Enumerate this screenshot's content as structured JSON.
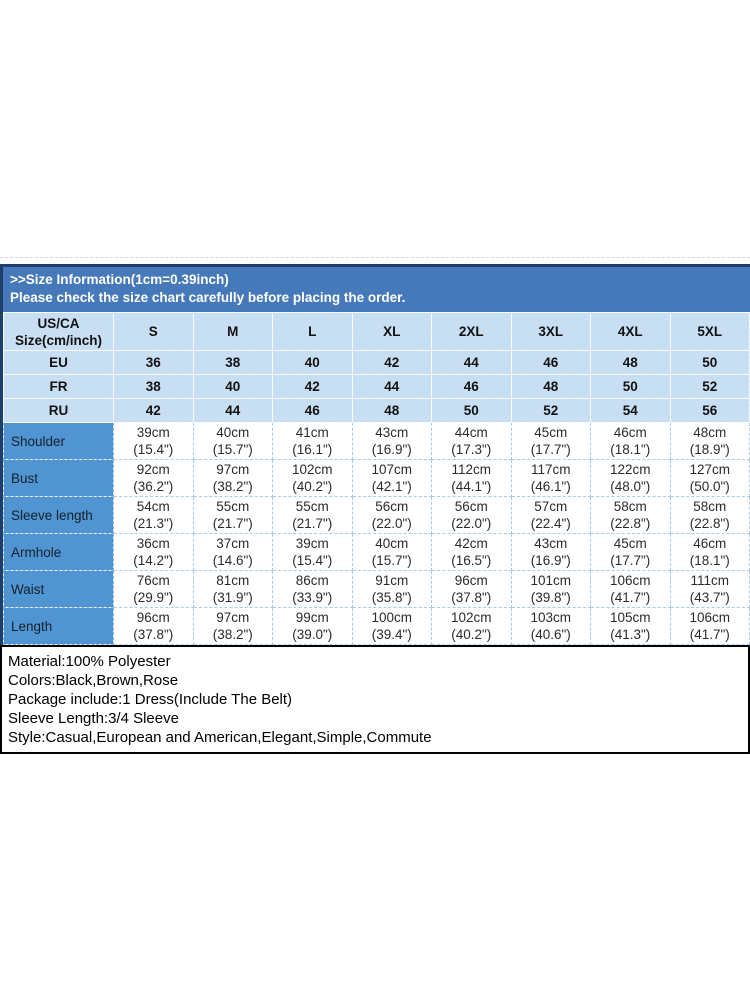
{
  "header": {
    "title_line1": ">>Size Information(1cm=0.39inch)",
    "title_line2": "Please check the size chart carefully before placing the order."
  },
  "size_table": {
    "corner_line1": "US/CA",
    "corner_line2": "Size(cm/inch)",
    "size_headers": [
      "S",
      "M",
      "L",
      "XL",
      "2XL",
      "3XL",
      "4XL",
      "5XL"
    ],
    "region_rows": [
      {
        "label": "EU",
        "values": [
          "36",
          "38",
          "40",
          "42",
          "44",
          "46",
          "48",
          "50"
        ]
      },
      {
        "label": "FR",
        "values": [
          "38",
          "40",
          "42",
          "44",
          "46",
          "48",
          "50",
          "52"
        ]
      },
      {
        "label": "RU",
        "values": [
          "42",
          "44",
          "46",
          "48",
          "50",
          "52",
          "54",
          "56"
        ]
      }
    ],
    "measure_rows": [
      {
        "label": "Shoulder",
        "values": [
          {
            "cm": "39cm",
            "inch": "(15.4\")"
          },
          {
            "cm": "40cm",
            "inch": "(15.7\")"
          },
          {
            "cm": "41cm",
            "inch": "(16.1\")"
          },
          {
            "cm": "43cm",
            "inch": "(16.9\")"
          },
          {
            "cm": "44cm",
            "inch": "(17.3\")"
          },
          {
            "cm": "45cm",
            "inch": "(17.7\")"
          },
          {
            "cm": "46cm",
            "inch": "(18.1\")"
          },
          {
            "cm": "48cm",
            "inch": "(18.9\")"
          }
        ]
      },
      {
        "label": "Bust",
        "values": [
          {
            "cm": "92cm",
            "inch": "(36.2\")"
          },
          {
            "cm": "97cm",
            "inch": "(38.2\")"
          },
          {
            "cm": "102cm",
            "inch": "(40.2\")"
          },
          {
            "cm": "107cm",
            "inch": "(42.1\")"
          },
          {
            "cm": "112cm",
            "inch": "(44.1\")"
          },
          {
            "cm": "117cm",
            "inch": "(46.1\")"
          },
          {
            "cm": "122cm",
            "inch": "(48.0\")"
          },
          {
            "cm": "127cm",
            "inch": "(50.0\")"
          }
        ]
      },
      {
        "label": "Sleeve length",
        "values": [
          {
            "cm": "54cm",
            "inch": "(21.3\")"
          },
          {
            "cm": "55cm",
            "inch": "(21.7\")"
          },
          {
            "cm": "55cm",
            "inch": "(21.7\")"
          },
          {
            "cm": "56cm",
            "inch": "(22.0\")"
          },
          {
            "cm": "56cm",
            "inch": "(22.0\")"
          },
          {
            "cm": "57cm",
            "inch": "(22.4\")"
          },
          {
            "cm": "58cm",
            "inch": "(22.8\")"
          },
          {
            "cm": "58cm",
            "inch": "(22.8\")"
          }
        ]
      },
      {
        "label": "Armhole",
        "values": [
          {
            "cm": "36cm",
            "inch": "(14.2\")"
          },
          {
            "cm": "37cm",
            "inch": "(14.6\")"
          },
          {
            "cm": "39cm",
            "inch": "(15.4\")"
          },
          {
            "cm": "40cm",
            "inch": "(15.7\")"
          },
          {
            "cm": "42cm",
            "inch": "(16.5\")"
          },
          {
            "cm": "43cm",
            "inch": "(16.9\")"
          },
          {
            "cm": "45cm",
            "inch": "(17.7\")"
          },
          {
            "cm": "46cm",
            "inch": "(18.1\")"
          }
        ]
      },
      {
        "label": "Waist",
        "values": [
          {
            "cm": "76cm",
            "inch": "(29.9\")"
          },
          {
            "cm": "81cm",
            "inch": "(31.9\")"
          },
          {
            "cm": "86cm",
            "inch": "(33.9\")"
          },
          {
            "cm": "91cm",
            "inch": "(35.8\")"
          },
          {
            "cm": "96cm",
            "inch": "(37.8\")"
          },
          {
            "cm": "101cm",
            "inch": "(39.8\")"
          },
          {
            "cm": "106cm",
            "inch": "(41.7\")"
          },
          {
            "cm": "111cm",
            "inch": "(43.7\")"
          }
        ]
      },
      {
        "label": "Length",
        "values": [
          {
            "cm": "96cm",
            "inch": "(37.8\")"
          },
          {
            "cm": "97cm",
            "inch": "(38.2\")"
          },
          {
            "cm": "99cm",
            "inch": "(39.0\")"
          },
          {
            "cm": "100cm",
            "inch": "(39.4\")"
          },
          {
            "cm": "102cm",
            "inch": "(40.2\")"
          },
          {
            "cm": "103cm",
            "inch": "(40.6\")"
          },
          {
            "cm": "105cm",
            "inch": "(41.3\")"
          },
          {
            "cm": "106cm",
            "inch": "(41.7\")"
          }
        ]
      }
    ]
  },
  "product_info": {
    "lines": [
      "Material:100% Polyester",
      "Colors:Black,Brown,Rose",
      "Package include:1 Dress(Include The Belt)",
      "Sleeve Length:3/4 Sleeve",
      "Style:Casual,European and American,Elegant,Simple,Commute"
    ]
  },
  "colors": {
    "title_bar": "#4679b9",
    "dark_border": "#1f3e6b",
    "light_blue_cell": "#c8def2",
    "label_column": "#5095d2",
    "info_border": "#000000"
  }
}
